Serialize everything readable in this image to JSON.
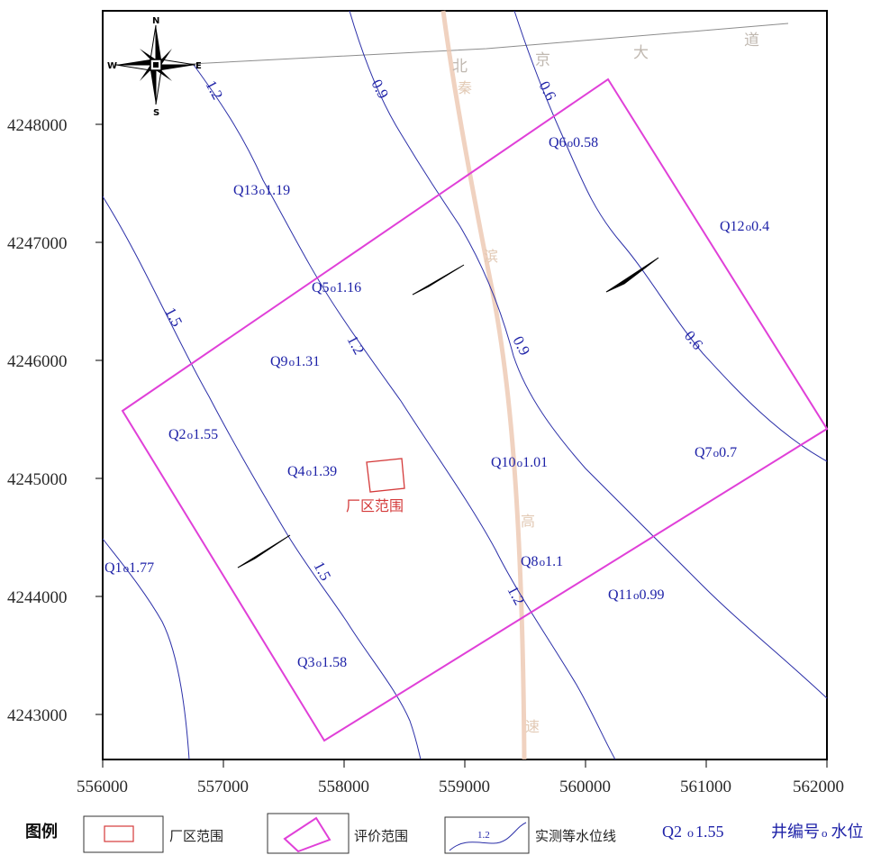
{
  "map": {
    "x_ticks": [
      "556000",
      "557000",
      "558000",
      "559000",
      "560000",
      "561000",
      "562000"
    ],
    "y_ticks": [
      "4248000",
      "4247000",
      "4246000",
      "4245000",
      "4244000",
      "4243000"
    ],
    "road_chars": [
      "北",
      "京",
      "大",
      "道"
    ],
    "rail_chars": [
      "秦",
      "滨",
      "高",
      "速"
    ],
    "plant_label": "厂区范围",
    "compass": {
      "n": "N",
      "s": "S",
      "e": "E",
      "w": "W"
    },
    "contour_labels": [
      "1.2",
      "0.9",
      "0.6",
      "1.5",
      "1.2",
      "0.9",
      "0.6",
      "1.5",
      "1.2"
    ],
    "wells": [
      {
        "id": "Q6",
        "level": "0.58"
      },
      {
        "id": "Q12",
        "level": "0.4"
      },
      {
        "id": "Q13",
        "level": "1.19"
      },
      {
        "id": "Q5",
        "level": "1.16"
      },
      {
        "id": "Q9",
        "level": "1.31"
      },
      {
        "id": "Q2",
        "level": "1.55"
      },
      {
        "id": "Q4",
        "level": "1.39"
      },
      {
        "id": "Q10",
        "level": "1.01"
      },
      {
        "id": "Q7",
        "level": "0.7"
      },
      {
        "id": "Q8",
        "level": "1.1"
      },
      {
        "id": "Q1",
        "level": "1.77"
      },
      {
        "id": "Q11",
        "level": "0.99"
      },
      {
        "id": "Q3",
        "level": "1.58"
      }
    ]
  },
  "legend": {
    "title": "图例",
    "plant_area": "厂区范围",
    "eval_area": "评价范围",
    "contour_sample_value": "1.2",
    "contour_line": "实测等水位线",
    "well_sample_id": "Q2",
    "well_sample_value": "1.55",
    "well_number": "井编号",
    "water_level": "水位"
  },
  "colors": {
    "contour": "#2b2fa8",
    "eval_boundary": "#e040d8",
    "plant_boundary": "#d43a3a",
    "rail": "#e8c0a6",
    "road": "#909090"
  }
}
